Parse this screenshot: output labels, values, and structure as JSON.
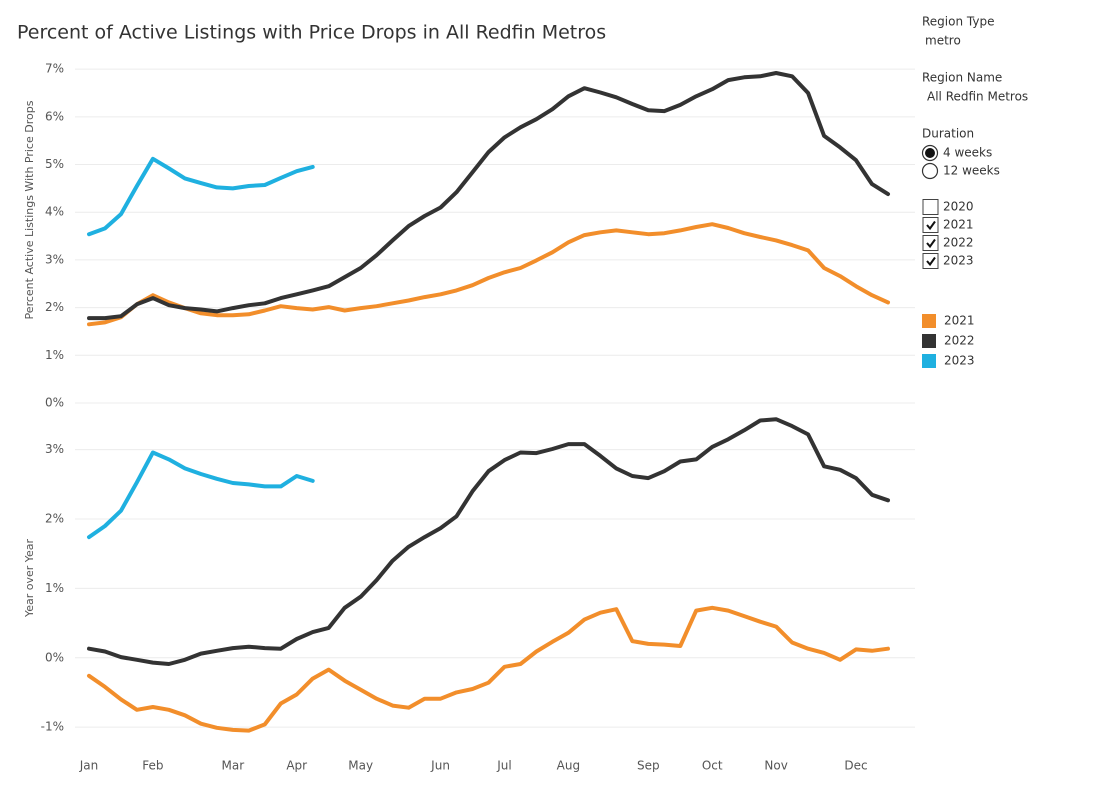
{
  "chart_data": [
    {
      "type": "line",
      "title": "Percent of Active Listings with Price Drops in  All Redfin Metros",
      "y_label": "Percent Active Listings With Price Drops",
      "ylim": [
        0,
        7.15
      ],
      "yticks": [
        {
          "value": 0,
          "label": "0%"
        },
        {
          "value": 1,
          "label": "1%"
        },
        {
          "value": 2,
          "label": "2%"
        },
        {
          "value": 3,
          "label": "3%"
        },
        {
          "value": 4,
          "label": "4%"
        },
        {
          "value": 5,
          "label": "5%"
        },
        {
          "value": 6,
          "label": "6%"
        },
        {
          "value": 7,
          "label": "7%"
        }
      ],
      "grid": true,
      "series": [
        {
          "name": "2021",
          "color": "#f28e2b",
          "values": [
            1.65,
            1.69,
            1.8,
            2.07,
            2.26,
            2.11,
            1.99,
            1.88,
            1.84,
            1.84,
            1.86,
            1.94,
            2.03,
            1.99,
            1.96,
            2.01,
            1.94,
            1.99,
            2.03,
            2.09,
            2.15,
            2.22,
            2.28,
            2.36,
            2.47,
            2.62,
            2.74,
            2.83,
            2.99,
            3.16,
            3.37,
            3.52,
            3.58,
            3.62,
            3.58,
            3.54,
            3.56,
            3.62,
            3.69,
            3.75,
            3.67,
            3.56,
            3.48,
            3.41,
            3.31,
            3.2,
            2.83,
            2.66,
            2.45,
            2.26,
            2.11
          ]
        },
        {
          "name": "2022",
          "color": "#333333",
          "values": [
            1.78,
            1.78,
            1.82,
            2.07,
            2.2,
            2.05,
            1.99,
            1.96,
            1.92,
            1.99,
            2.05,
            2.09,
            2.2,
            2.28,
            2.36,
            2.45,
            2.64,
            2.83,
            3.1,
            3.41,
            3.71,
            3.92,
            4.1,
            4.42,
            4.84,
            5.26,
            5.57,
            5.78,
            5.95,
            6.16,
            6.43,
            6.6,
            6.51,
            6.41,
            6.27,
            6.14,
            6.12,
            6.25,
            6.43,
            6.58,
            6.77,
            6.83,
            6.85,
            6.92,
            6.85,
            6.5,
            5.6,
            5.36,
            5.09,
            4.59,
            4.38
          ]
        },
        {
          "name": "2023",
          "color": "#1fb0e0",
          "values": [
            3.54,
            3.66,
            3.96,
            4.55,
            5.12,
            4.92,
            4.71,
            4.61,
            4.52,
            4.5,
            4.55,
            4.57,
            4.72,
            4.86,
            4.95,
            null,
            null,
            null,
            null,
            null,
            null,
            null,
            null,
            null,
            null,
            null,
            null,
            null,
            null,
            null,
            null,
            null,
            null,
            null,
            null,
            null,
            null,
            null,
            null,
            null,
            null,
            null,
            null,
            null,
            null,
            null,
            null,
            null,
            null,
            null,
            null
          ]
        }
      ]
    },
    {
      "type": "line",
      "y_label": "Year over Year",
      "categories": [
        "Jan",
        null,
        null,
        null,
        "Feb",
        null,
        null,
        null,
        null,
        "Mar",
        null,
        null,
        null,
        "Apr",
        null,
        null,
        null,
        "May",
        null,
        null,
        null,
        null,
        "Jun",
        null,
        null,
        null,
        "Jul",
        null,
        null,
        null,
        "Aug",
        null,
        null,
        null,
        null,
        "Sep",
        null,
        null,
        null,
        "Oct",
        null,
        null,
        null,
        "Nov",
        null,
        null,
        null,
        null,
        "Dec",
        null,
        null
      ],
      "ylim": [
        -1.2,
        3.5
      ],
      "yticks": [
        {
          "value": -1,
          "label": "-1%"
        },
        {
          "value": 0,
          "label": "0%"
        },
        {
          "value": 1,
          "label": "1%"
        },
        {
          "value": 2,
          "label": "2%"
        },
        {
          "value": 3,
          "label": "3%"
        }
      ],
      "grid": true,
      "series": [
        {
          "color": "#f28e2b",
          "values": [
            -0.26,
            -0.42,
            -0.6,
            -0.75,
            -0.71,
            -0.75,
            -0.83,
            -0.95,
            -1.01,
            -1.04,
            -1.05,
            -0.96,
            -0.66,
            -0.53,
            -0.3,
            -0.17,
            -0.33,
            -0.46,
            -0.59,
            -0.69,
            -0.72,
            -0.59,
            -0.59,
            -0.5,
            -0.45,
            -0.36,
            -0.13,
            -0.09,
            0.09,
            0.23,
            0.36,
            0.55,
            0.65,
            0.7,
            0.24,
            0.2,
            0.19,
            0.17,
            0.68,
            0.72,
            0.68,
            0.6,
            0.52,
            0.45,
            0.22,
            0.13,
            0.07,
            -0.03,
            0.12,
            0.1,
            0.13
          ]
        },
        {
          "color": "#333333",
          "values": [
            0.13,
            0.09,
            0.01,
            -0.03,
            -0.07,
            -0.09,
            -0.03,
            0.06,
            0.1,
            0.14,
            0.16,
            0.14,
            0.13,
            0.27,
            0.37,
            0.43,
            0.72,
            0.88,
            1.12,
            1.4,
            1.6,
            1.74,
            1.87,
            2.04,
            2.4,
            2.69,
            2.85,
            2.96,
            2.95,
            3.01,
            3.08,
            3.08,
            2.91,
            2.73,
            2.62,
            2.59,
            2.69,
            2.83,
            2.86,
            3.04,
            3.15,
            3.28,
            3.42,
            3.44,
            3.34,
            3.22,
            2.76,
            2.71,
            2.59,
            2.35,
            2.27
          ]
        },
        {
          "color": "#1fb0e0",
          "values": [
            1.74,
            1.9,
            2.12,
            2.53,
            2.96,
            2.86,
            2.73,
            2.65,
            2.58,
            2.52,
            2.5,
            2.47,
            2.47,
            2.62,
            2.55,
            null,
            null,
            null,
            null,
            null,
            null,
            null,
            null,
            null,
            null,
            null,
            null,
            null,
            null,
            null,
            null,
            null,
            null,
            null,
            null,
            null,
            null,
            null,
            null,
            null,
            null,
            null,
            null,
            null,
            null,
            null,
            null,
            null,
            null,
            null,
            null
          ]
        }
      ]
    }
  ],
  "filters": {
    "region_type": {
      "label": "Region Type",
      "value": "metro"
    },
    "region_name": {
      "label": "Region Name",
      "value": "All Redfin Metros"
    },
    "duration": {
      "label": "Duration",
      "options": [
        {
          "label": "4 weeks",
          "selected": true
        },
        {
          "label": "12 weeks",
          "selected": false
        }
      ]
    },
    "years": [
      {
        "label": "2020",
        "checked": false
      },
      {
        "label": "2021",
        "checked": true
      },
      {
        "label": "2022",
        "checked": true
      },
      {
        "label": "2023",
        "checked": true
      }
    ]
  }
}
